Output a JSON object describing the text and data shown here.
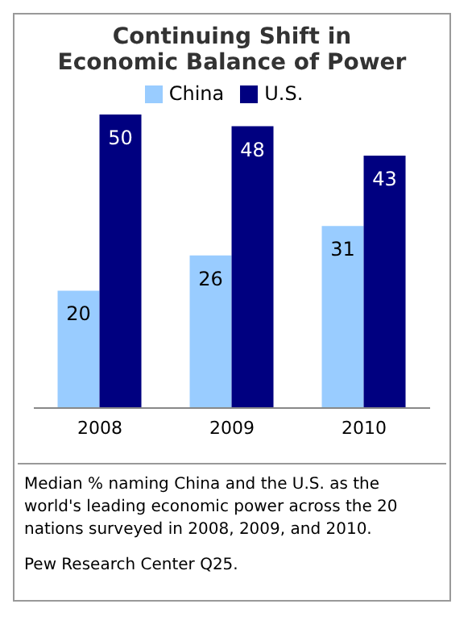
{
  "chart_data": {
    "type": "bar",
    "title": "Continuing Shift in Economic Balance of Power",
    "categories": [
      "2008",
      "2009",
      "2010"
    ],
    "series": [
      {
        "name": "China",
        "color": "#99ccff",
        "values": [
          20,
          26,
          31
        ]
      },
      {
        "name": "U.S.",
        "color": "#000080",
        "values": [
          50,
          48,
          43
        ]
      }
    ],
    "data_labels": true,
    "legend": "top",
    "grid": false,
    "annotations": [
      "Median % naming China and the U.S. as the world's leading economic power across the 20 nations surveyed in 2008, 2009, and 2010.",
      "Pew Research Center Q25."
    ]
  }
}
